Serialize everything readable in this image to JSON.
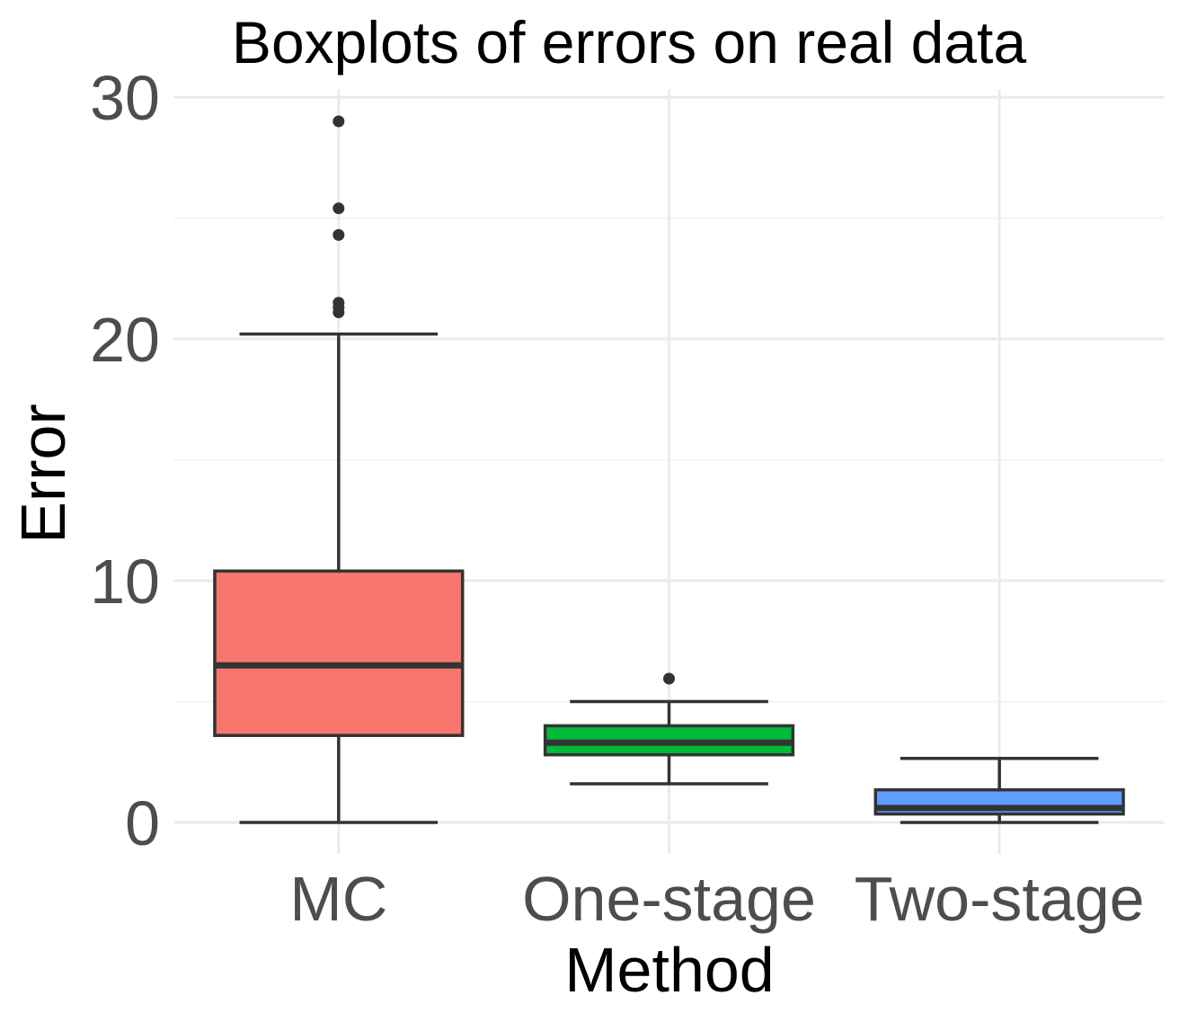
{
  "chart_data": {
    "type": "boxplot",
    "title": "Boxplots of errors on real data",
    "xlabel": "Method",
    "ylabel": "Error",
    "ylim": [
      -1.3,
      30.3
    ],
    "y_ticks": [
      0,
      10,
      20,
      30
    ],
    "grid": true,
    "legend": "none",
    "categories": [
      "MC",
      "One-stage",
      "Two-stage"
    ],
    "boxes": [
      {
        "category": "MC",
        "whisker_low": 0,
        "q1": 3.6,
        "median": 6.5,
        "q3": 10.4,
        "whisker_high": 20.2,
        "outliers": [
          21.1,
          21.3,
          21.5,
          24.3,
          25.4,
          29.0
        ],
        "color": "#F8766D"
      },
      {
        "category": "One-stage",
        "whisker_low": 1.6,
        "q1": 2.8,
        "median": 3.3,
        "q3": 4.0,
        "whisker_high": 5.0,
        "outliers": [
          5.95
        ],
        "color": "#00BA38"
      },
      {
        "category": "Two-stage",
        "whisker_low": 0.0,
        "q1": 0.35,
        "median": 0.6,
        "q3": 1.35,
        "whisker_high": 2.65,
        "outliers": [],
        "color": "#619CFF"
      }
    ]
  }
}
